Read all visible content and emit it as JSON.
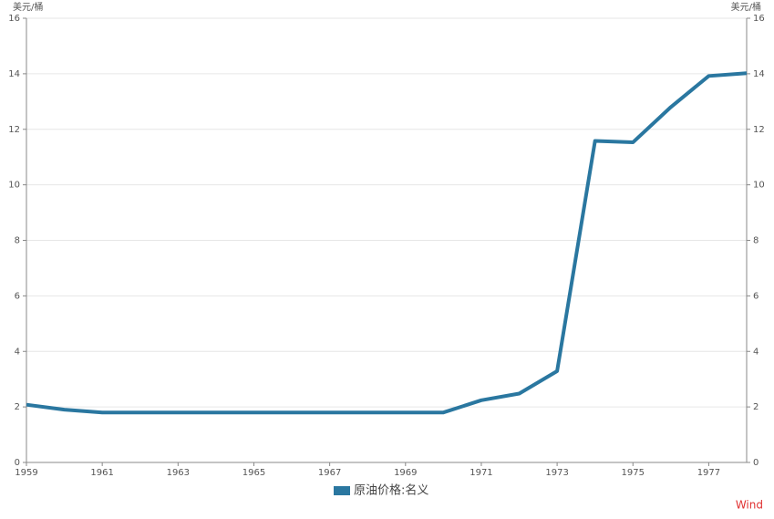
{
  "chart_data": {
    "type": "line",
    "y_label": "美元/桶",
    "y2_label": "美元/桶",
    "x": [
      1959,
      1960,
      1961,
      1962,
      1963,
      1964,
      1965,
      1966,
      1967,
      1968,
      1969,
      1970,
      1971,
      1972,
      1973,
      1974,
      1975,
      1976,
      1977,
      1978
    ],
    "series": [
      {
        "name": "原油价格:名义",
        "color": "#2a77a0",
        "values": [
          2.08,
          1.9,
          1.8,
          1.8,
          1.8,
          1.8,
          1.8,
          1.8,
          1.8,
          1.8,
          1.8,
          1.8,
          2.24,
          2.48,
          3.29,
          11.58,
          11.53,
          12.8,
          13.92,
          14.02
        ]
      }
    ],
    "xlim": [
      1959,
      1978
    ],
    "xticks": [
      1959,
      1961,
      1963,
      1965,
      1967,
      1969,
      1971,
      1973,
      1975,
      1977
    ],
    "ylim": [
      0,
      16
    ],
    "yticks": [
      0,
      2,
      4,
      6,
      8,
      10,
      12,
      14,
      16
    ],
    "y2lim": [
      0,
      16
    ],
    "y2ticks": [
      0,
      2,
      4,
      6,
      8,
      10,
      12,
      14,
      16
    ],
    "grid": true,
    "legend": "bottom",
    "source": "Wind"
  }
}
